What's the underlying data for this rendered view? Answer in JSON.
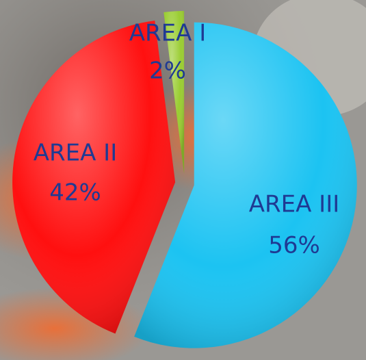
{
  "chart_data": {
    "type": "pie",
    "categories": [
      "AREA I",
      "AREA II",
      "AREA III"
    ],
    "values": [
      2,
      42,
      56
    ],
    "value_labels": [
      "2%",
      "42%",
      "56%"
    ],
    "colors": [
      "#9acd32",
      "#ff1010",
      "#1cc3f2"
    ]
  }
}
